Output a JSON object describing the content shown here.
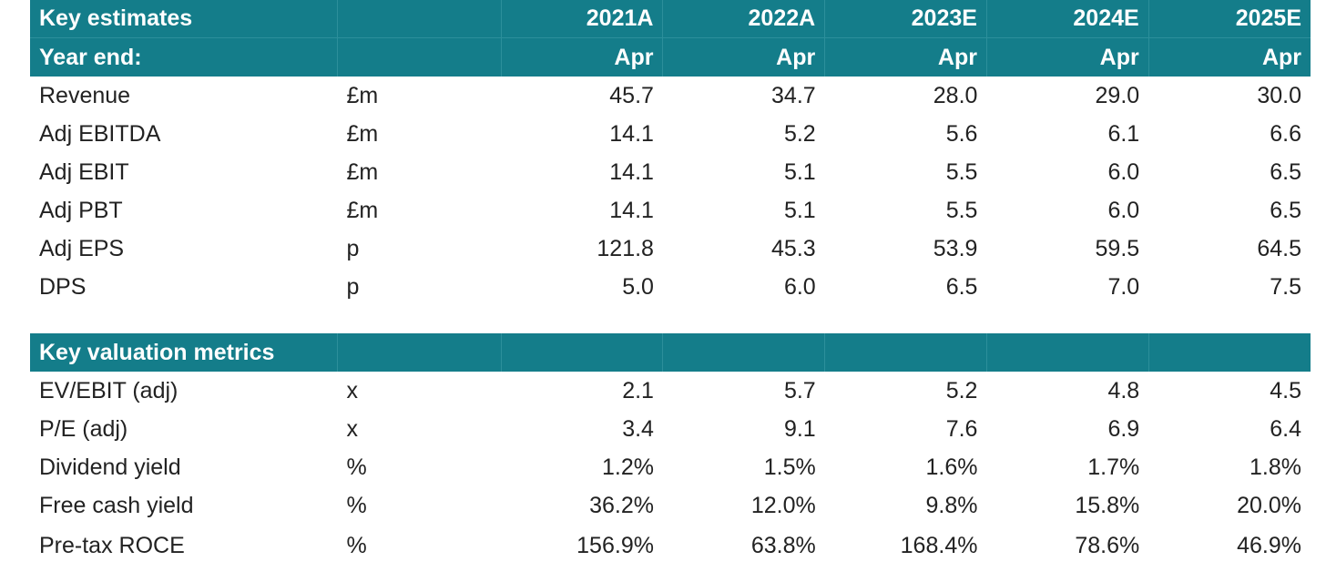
{
  "estimates": {
    "title": "Key estimates",
    "year_end_label": "Year end:",
    "years": [
      "2021A",
      "2022A",
      "2023E",
      "2024E",
      "2025E"
    ],
    "months": [
      "Apr",
      "Apr",
      "Apr",
      "Apr",
      "Apr"
    ],
    "rows": [
      {
        "label": "Revenue",
        "unit": "£m",
        "values": [
          "45.7",
          "34.7",
          "28.0",
          "29.0",
          "30.0"
        ]
      },
      {
        "label": "Adj EBITDA",
        "unit": "£m",
        "values": [
          "14.1",
          "5.2",
          "5.6",
          "6.1",
          "6.6"
        ]
      },
      {
        "label": "Adj EBIT",
        "unit": "£m",
        "values": [
          "14.1",
          "5.1",
          "5.5",
          "6.0",
          "6.5"
        ]
      },
      {
        "label": "Adj PBT",
        "unit": "£m",
        "values": [
          "14.1",
          "5.1",
          "5.5",
          "6.0",
          "6.5"
        ]
      },
      {
        "label": "Adj EPS",
        "unit": "p",
        "values": [
          "121.8",
          "45.3",
          "53.9",
          "59.5",
          "64.5"
        ]
      },
      {
        "label": "DPS",
        "unit": "p",
        "values": [
          "5.0",
          "6.0",
          "6.5",
          "7.0",
          "7.5"
        ]
      }
    ]
  },
  "valuation": {
    "title": "Key valuation metrics",
    "rows": [
      {
        "label": "EV/EBIT (adj)",
        "unit": "x",
        "values": [
          "2.1",
          "5.7",
          "5.2",
          "4.8",
          "4.5"
        ]
      },
      {
        "label": "P/E (adj)",
        "unit": "x",
        "values": [
          "3.4",
          "9.1",
          "7.6",
          "6.9",
          "6.4"
        ]
      },
      {
        "label": "Dividend yield",
        "unit": "%",
        "values": [
          "1.2%",
          "1.5%",
          "1.6%",
          "1.7%",
          "1.8%"
        ]
      },
      {
        "label": "Free cash yield",
        "unit": "%",
        "values": [
          "36.2%",
          "12.0%",
          "9.8%",
          "15.8%",
          "20.0%"
        ]
      },
      {
        "label": "Pre-tax ROCE",
        "unit": "%",
        "values": [
          "156.9%",
          "63.8%",
          "168.4%",
          "78.6%",
          "46.9%"
        ]
      }
    ]
  },
  "colors": {
    "header_bg": "#147d8a",
    "header_text": "#ffffff",
    "body_text": "#222222"
  }
}
